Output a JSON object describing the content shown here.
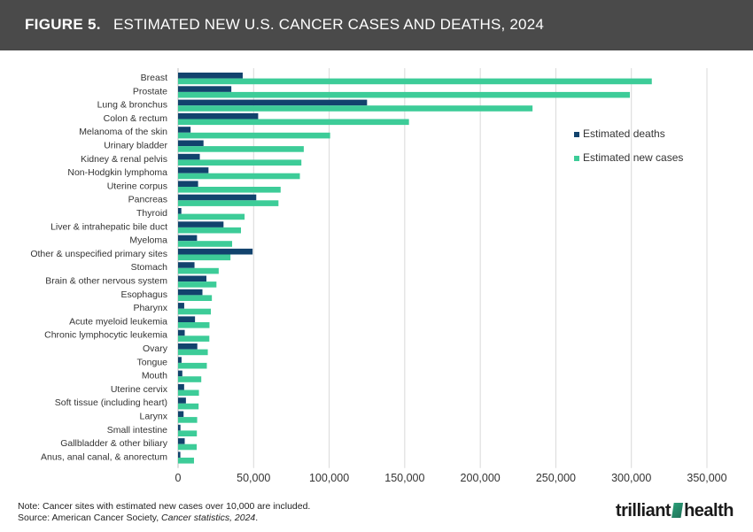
{
  "header": {
    "figure_label": "FIGURE 5.",
    "title": "ESTIMATED NEW U.S. CANCER CASES AND DEATHS, 2024"
  },
  "chart_data": {
    "type": "bar",
    "orientation": "horizontal",
    "title": "ESTIMATED NEW U.S. CANCER CASES AND DEATHS, 2024",
    "categories": [
      "Breast",
      "Prostate",
      "Lung & bronchus",
      "Colon & rectum",
      "Melanoma of the skin",
      "Urinary bladder",
      "Kidney & renal pelvis",
      "Non-Hodgkin lymphoma",
      "Uterine corpus",
      "Pancreas",
      "Thyroid",
      "Liver & intrahepatic bile duct",
      "Myeloma",
      "Other & unspecified primary sites",
      "Stomach",
      "Brain & other nervous system",
      "Esophagus",
      "Pharynx",
      "Acute myeloid leukemia",
      "Chronic lymphocytic leukemia",
      "Ovary",
      "Tongue",
      "Mouth",
      "Uterine cervix",
      "Soft tissue (including heart)",
      "Larynx",
      "Small intestine",
      "Gallbladder & other biliary",
      "Anus, anal canal, & anorectum"
    ],
    "series": [
      {
        "name": "Estimated deaths",
        "color": "#12436d",
        "values": [
          42780,
          35250,
          125070,
          53010,
          8290,
          16840,
          14390,
          20140,
          13250,
          51750,
          2170,
          30090,
          12540,
          49330,
          10880,
          18760,
          16130,
          4070,
          11220,
          4410,
          12740,
          2300,
          2820,
          4020,
          5200,
          3650,
          1590,
          4400,
          1520
        ]
      },
      {
        "name": "Estimated new cases",
        "color": "#3dcc98",
        "values": [
          313510,
          299010,
          234580,
          152810,
          100640,
          83190,
          81610,
          80620,
          67880,
          66440,
          44020,
          41630,
          35780,
          34670,
          26890,
          25400,
          22370,
          21710,
          20800,
          20700,
          19680,
          19040,
          15360,
          13820,
          13590,
          12650,
          12440,
          12350,
          10540
        ]
      }
    ],
    "x_ticks": [
      0,
      50000,
      100000,
      150000,
      200000,
      250000,
      300000,
      350000
    ],
    "x_tick_labels": [
      "0",
      "50,000",
      "100,000",
      "150,000",
      "200,000",
      "250,000",
      "300,000",
      "350,000"
    ],
    "xlim": [
      0,
      350000
    ],
    "grid": "vertical",
    "legend_position": "right"
  },
  "footer": {
    "note": "Note: Cancer sites with estimated new cases over 10,000 are included.",
    "source_prefix": "Source: American Cancer Society, ",
    "source_title": "Cancer statistics, 2024",
    "source_suffix": "."
  },
  "brand": {
    "name_left": "trilliant",
    "name_right": "health"
  }
}
